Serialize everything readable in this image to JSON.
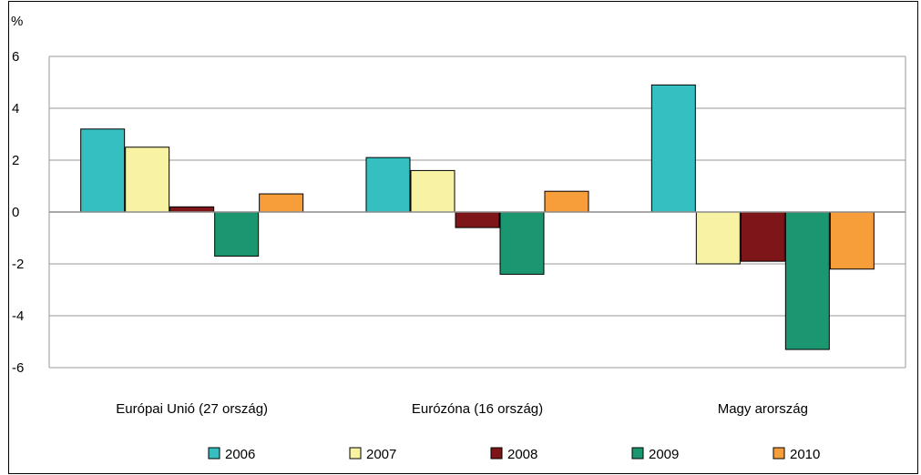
{
  "chart_data": {
    "type": "bar",
    "ylabel": "%",
    "ylim": [
      -6,
      6
    ],
    "yticks": [
      6,
      4,
      2,
      0,
      -2,
      -4,
      -6
    ],
    "categories": [
      "Európai Unió (27 ország)",
      "Eurózóna (16 ország)",
      "Magy arország"
    ],
    "series": [
      {
        "name": "2006",
        "color": "#36BFC1",
        "values": [
          3.2,
          2.1,
          4.9
        ]
      },
      {
        "name": "2007",
        "color": "#F8F3A2",
        "values": [
          2.5,
          1.6,
          -2.0
        ]
      },
      {
        "name": "2008",
        "color": "#7E1518",
        "values": [
          0.2,
          -0.6,
          -1.9
        ]
      },
      {
        "name": "2009",
        "color": "#1A9670",
        "values": [
          -1.7,
          -2.4,
          -5.3
        ]
      },
      {
        "name": "2010",
        "color": "#F79E3A",
        "values": [
          0.7,
          0.8,
          -2.2
        ]
      }
    ],
    "grid": true,
    "legend_position": "bottom"
  }
}
